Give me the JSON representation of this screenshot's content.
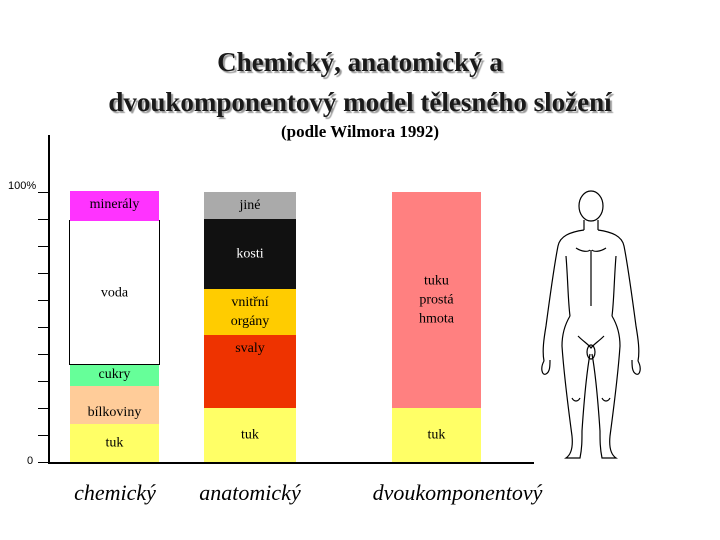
{
  "title_line1": "Chemický, anatomický a",
  "title_line2": "dvoukomponentový model tělesného složení",
  "subtitle": "(podle Wilmora 1992)",
  "axis": {
    "top_label": "100%",
    "bottom_label": "0"
  },
  "columns": [
    {
      "name": "chemický",
      "segments": [
        {
          "label": "tuk",
          "color": "#ffff66",
          "frac": 0.14
        },
        {
          "label": "bílkoviny",
          "color": "#ffcc99",
          "frac": 0.14
        },
        {
          "label": "cukry",
          "color": "#66ff99",
          "frac": 0.08
        },
        {
          "label": "voda",
          "color": "#ffffff",
          "frac": 0.53
        },
        {
          "label": "minerály",
          "color": "#ff33ff",
          "frac": 0.11
        }
      ]
    },
    {
      "name": "anatomický",
      "segments": [
        {
          "label": "tuk",
          "color": "#ffff66",
          "frac": 0.2
        },
        {
          "label": "svaly",
          "color": "#ee3300",
          "frac": 0.27
        },
        {
          "label": "vnitřní orgány",
          "color": "#ffcc00",
          "frac": 0.17
        },
        {
          "label": "kosti",
          "color": "#111111",
          "frac": 0.26
        },
        {
          "label": "jiné",
          "color": "#aaaaaa",
          "frac": 0.1
        }
      ]
    },
    {
      "name": "dvoukomponentový",
      "segments": [
        {
          "label": "tuk",
          "color": "#ffff66",
          "frac": 0.2
        },
        {
          "label": "tuku prostá hmota",
          "color": "#ff8080",
          "frac": 0.8
        }
      ]
    }
  ]
}
